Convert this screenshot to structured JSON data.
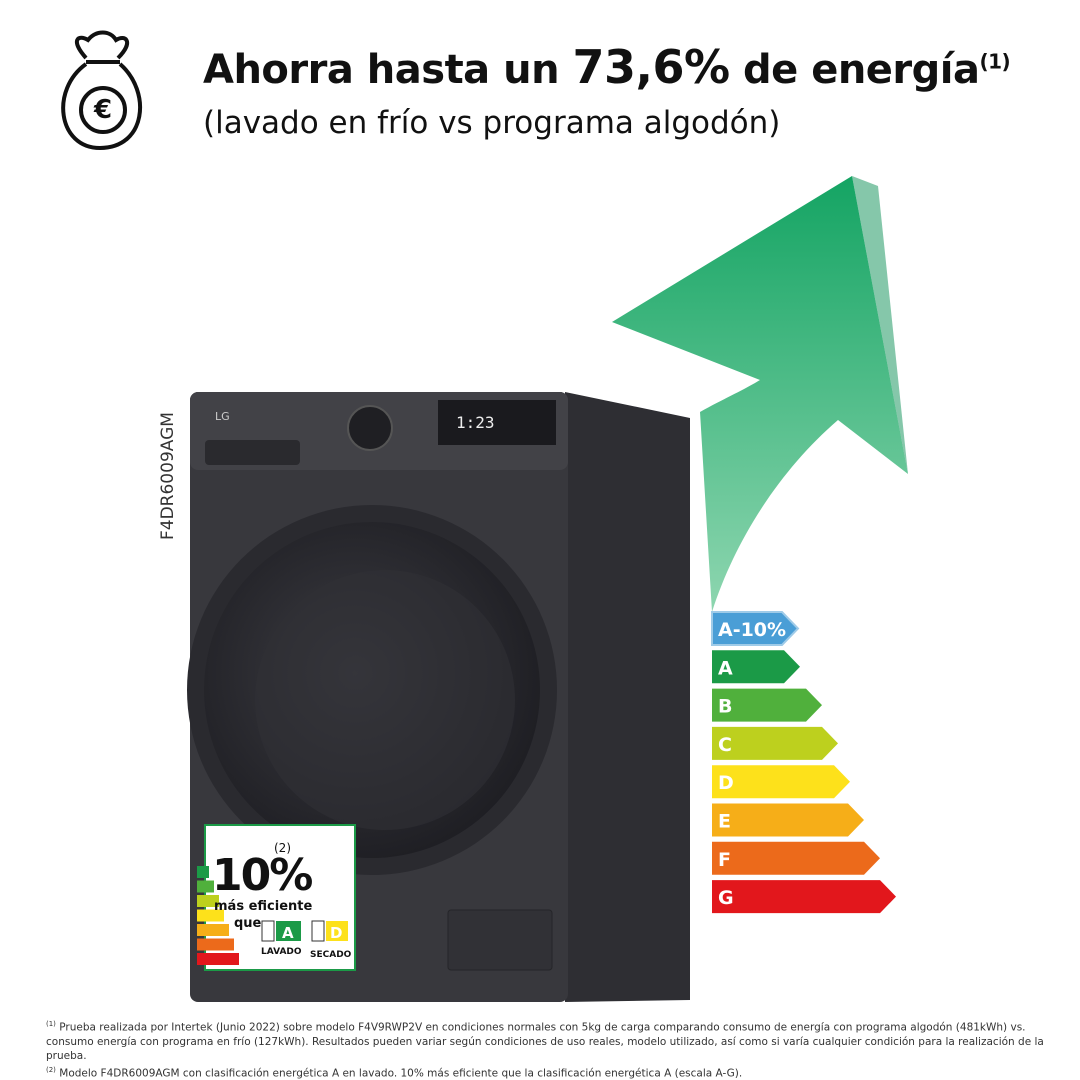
{
  "header": {
    "title_parts": [
      "Ahorra hasta un ",
      "73,6%",
      " de energía"
    ],
    "title_note": "(1)",
    "subtitle": "(lavado en frío vs programa algodón)"
  },
  "product": {
    "brand": "LG",
    "display": "1:23",
    "model": "F4DR6009AGM"
  },
  "energy_scale": {
    "classes": [
      {
        "label": "A-10%",
        "color": "#4a9ed6"
      },
      {
        "label": "A",
        "color": "#1b9a47"
      },
      {
        "label": "B",
        "color": "#50b03c"
      },
      {
        "label": "C",
        "color": "#bdd01e"
      },
      {
        "label": "D",
        "color": "#fde11b"
      },
      {
        "label": "E",
        "color": "#f6ae18"
      },
      {
        "label": "F",
        "color": "#ec6a1b"
      },
      {
        "label": "G",
        "color": "#e2171c"
      }
    ]
  },
  "badge": {
    "value": "10%",
    "note": "(2)",
    "line1": "más eficiente",
    "line2": "que",
    "wash_class": "A",
    "wash_label": "LAVADO",
    "dry_class": "D",
    "dry_label": "SECADO"
  },
  "footnotes": [
    {
      "mark": "(1)",
      "text": "Prueba realizada por Intertek (Junio 2022) sobre modelo F4V9RWP2V en condiciones normales con 5kg de carga comparando consumo de energía con programa algodón (481kWh) vs. consumo energía con programa en frío (127kWh). Resultados pueden variar según condiciones de uso reales, modelo utilizado, así como si varía cualquier condición para la realización de la prueba."
    },
    {
      "mark": "(2)",
      "text": "Modelo F4DR6009AGM con clasificación energética A en lavado. 10% más eficiente que la clasificación energética A (escala A-G)."
    }
  ]
}
